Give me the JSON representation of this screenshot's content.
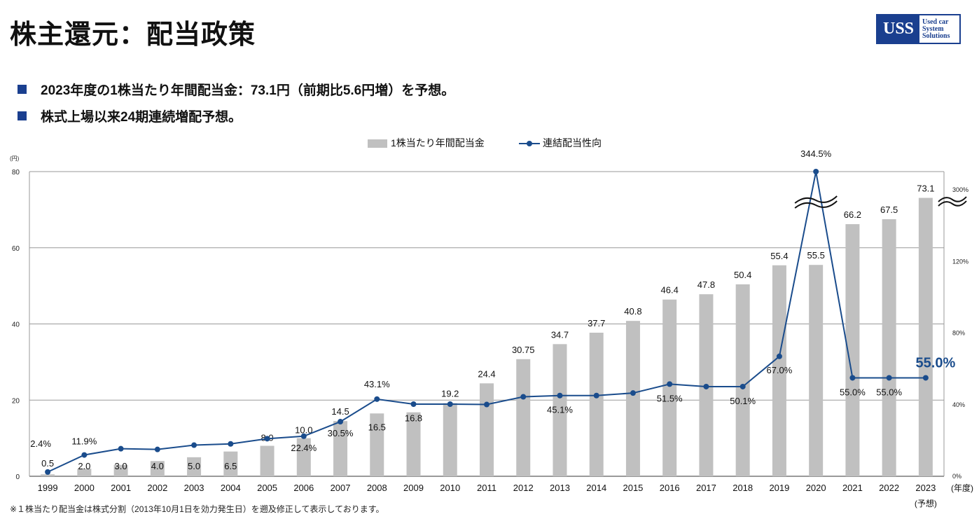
{
  "page": {
    "title": "株主還元：配当政策",
    "logo_mark": "USS",
    "logo_line1": "Used car",
    "logo_line2": "System",
    "logo_line3": "Solutions",
    "bullets": [
      "2023年度の1株当たり年間配当金：73.1円（前期比5.6円増）を予想。",
      "株式上場以来24期連続増配予想。"
    ],
    "footnote": "※１株当たり配当金は株式分割（2013年10月1日を効力発生日）を遡及修正して表示しております。",
    "colors": {
      "accent": "#1a3f8f",
      "bar": "#c0c0c0",
      "line": "#1a4c8c"
    }
  },
  "chart_data": {
    "type": "bar+line",
    "legend": [
      "1株当たり年間配当金",
      "連結配当性向"
    ],
    "legend_position": "top-center",
    "left_unit": "(円)",
    "x_unit": "(年度)",
    "forecast_note": "(予想)",
    "categories": [
      "1999",
      "2000",
      "2001",
      "2002",
      "2003",
      "2004",
      "2005",
      "2006",
      "2007",
      "2008",
      "2009",
      "2010",
      "2011",
      "2012",
      "2013",
      "2014",
      "2015",
      "2016",
      "2017",
      "2018",
      "2019",
      "2020",
      "2021",
      "2022",
      "2023"
    ],
    "dividend": {
      "name": "1株当たり年間配当金",
      "values": [
        0.5,
        2.0,
        3.0,
        4.0,
        5.0,
        6.5,
        8.0,
        10.0,
        14.5,
        16.5,
        16.8,
        19.2,
        24.4,
        30.75,
        34.7,
        37.7,
        40.8,
        46.4,
        47.8,
        50.4,
        55.4,
        55.5,
        66.2,
        67.5,
        73.1
      ],
      "labels": [
        "0.5",
        "2.0",
        "3.0",
        "4.0",
        "5.0",
        "6.5",
        "8.0",
        "10.0",
        "14.5",
        "16.5",
        "16.8",
        "19.2",
        "24.4",
        "30.75",
        "34.7",
        "37.7",
        "40.8",
        "46.4",
        "47.8",
        "50.4",
        "55.4",
        "55.5",
        "66.2",
        "67.5",
        "73.1"
      ]
    },
    "payout": {
      "name": "連結配当性向",
      "values": [
        2.4,
        11.9,
        15.4,
        15.0,
        17.4,
        18.1,
        21.0,
        22.4,
        30.5,
        43.1,
        40.3,
        40.3,
        40.1,
        44.4,
        45.1,
        45.1,
        46.5,
        51.5,
        50.1,
        50.1,
        67.0,
        344.5,
        55.0,
        55.0,
        55.0
      ],
      "labels": [
        "2.4%",
        "11.9%",
        "",
        "",
        "",
        "",
        "",
        "22.4%",
        "30.5%",
        "43.1%",
        "",
        "",
        "",
        "",
        "45.1%",
        "",
        "",
        "51.5%",
        "",
        "50.1%",
        "67.0%",
        "344.5%",
        "55.0%",
        "55.0%",
        "55.0%"
      ]
    },
    "left_axis": {
      "min": 0,
      "max": 80,
      "ticks": [
        0,
        20,
        40,
        60,
        80
      ],
      "tick_labels": [
        "0",
        "20",
        "40",
        "60",
        "80"
      ]
    },
    "right_axis": {
      "ticks": [
        0,
        40,
        80,
        120,
        300
      ],
      "tick_labels": [
        "0%",
        "40%",
        "80%",
        "120%",
        "300%"
      ],
      "break_above": 120
    }
  }
}
